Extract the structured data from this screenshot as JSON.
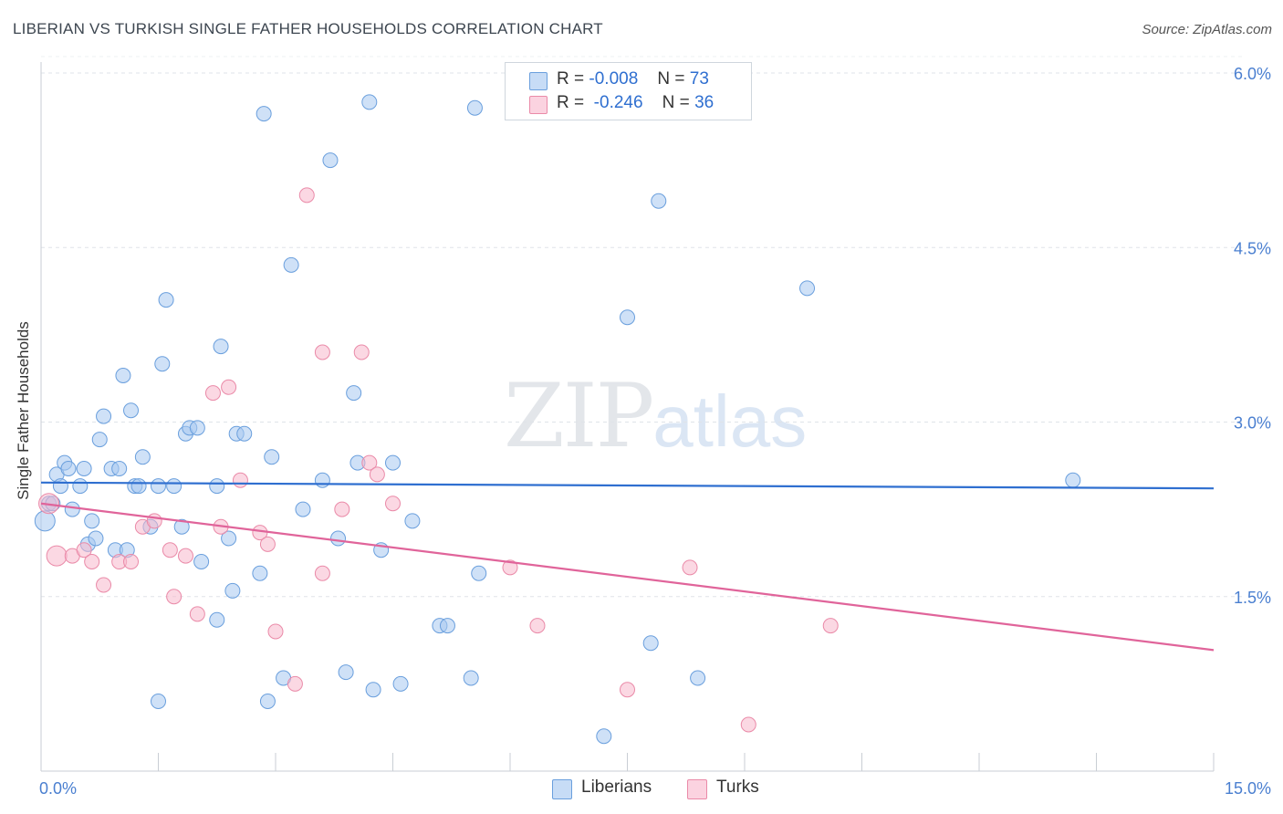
{
  "title": "LIBERIAN VS TURKISH SINGLE FATHER HOUSEHOLDS CORRELATION CHART",
  "source_label": "Source: ZipAtlas.com",
  "watermark": {
    "zip": "ZIP",
    "atlas": "atlas"
  },
  "legend": {
    "rows": [
      {
        "r_label": "R =",
        "r_value": "-0.008",
        "n_label": "N =",
        "n_value": "73",
        "color": "#a8c8f0"
      },
      {
        "r_label": "R =",
        "r_value": "-0.246",
        "n_label": "N =",
        "n_value": "36",
        "color": "#f7b8cc"
      }
    ]
  },
  "bottom_legend": [
    {
      "label": "Liberians",
      "color": "#a8c8f0"
    },
    {
      "label": "Turks",
      "color": "#f7b8cc"
    }
  ],
  "chart_data": {
    "type": "scatter",
    "title": "LIBERIAN VS TURKISH SINGLE FATHER HOUSEHOLDS CORRELATION CHART",
    "xlabel": "",
    "ylabel": "Single Father Households",
    "xlim": [
      0,
      15
    ],
    "ylim": [
      0,
      6.3
    ],
    "x_tick_labels": [
      "0.0%",
      "15.0%"
    ],
    "y_ticks": [
      1.5,
      3.0,
      4.5,
      6.0
    ],
    "y_tick_labels": [
      "1.5%",
      "3.0%",
      "4.5%",
      "6.0%"
    ],
    "grid": true,
    "series": [
      {
        "name": "Liberians",
        "color": "#a8c8f0",
        "stroke": "#6a9fdd",
        "points": [
          [
            0.05,
            2.15
          ],
          [
            0.1,
            2.3
          ],
          [
            0.2,
            2.55
          ],
          [
            0.25,
            2.45
          ],
          [
            0.3,
            2.65
          ],
          [
            0.35,
            2.6
          ],
          [
            0.4,
            2.25
          ],
          [
            0.5,
            2.45
          ],
          [
            0.55,
            2.6
          ],
          [
            0.6,
            1.95
          ],
          [
            0.65,
            2.15
          ],
          [
            0.7,
            2.0
          ],
          [
            0.75,
            2.85
          ],
          [
            0.8,
            3.05
          ],
          [
            0.9,
            2.6
          ],
          [
            0.95,
            1.9
          ],
          [
            1.0,
            2.6
          ],
          [
            1.05,
            3.4
          ],
          [
            1.1,
            1.9
          ],
          [
            1.15,
            3.1
          ],
          [
            1.2,
            2.45
          ],
          [
            1.25,
            2.45
          ],
          [
            1.3,
            2.7
          ],
          [
            1.4,
            2.1
          ],
          [
            1.5,
            2.45
          ],
          [
            1.5,
            0.6
          ],
          [
            1.55,
            3.5
          ],
          [
            1.6,
            4.05
          ],
          [
            1.7,
            2.45
          ],
          [
            1.8,
            2.1
          ],
          [
            1.85,
            2.9
          ],
          [
            1.9,
            2.95
          ],
          [
            2.0,
            2.95
          ],
          [
            2.05,
            1.8
          ],
          [
            2.25,
            2.45
          ],
          [
            2.25,
            1.3
          ],
          [
            2.3,
            3.65
          ],
          [
            2.4,
            2.0
          ],
          [
            2.45,
            1.55
          ],
          [
            2.5,
            2.9
          ],
          [
            2.6,
            2.9
          ],
          [
            2.8,
            1.7
          ],
          [
            2.85,
            5.65
          ],
          [
            2.9,
            0.6
          ],
          [
            2.95,
            2.7
          ],
          [
            3.1,
            0.8
          ],
          [
            3.2,
            4.35
          ],
          [
            3.35,
            2.25
          ],
          [
            3.6,
            2.5
          ],
          [
            3.7,
            5.25
          ],
          [
            3.8,
            2.0
          ],
          [
            3.9,
            0.85
          ],
          [
            4.0,
            3.25
          ],
          [
            4.05,
            2.65
          ],
          [
            4.2,
            5.75
          ],
          [
            4.25,
            0.7
          ],
          [
            4.35,
            1.9
          ],
          [
            4.5,
            2.65
          ],
          [
            4.6,
            0.75
          ],
          [
            4.75,
            2.15
          ],
          [
            5.1,
            1.25
          ],
          [
            5.2,
            1.25
          ],
          [
            5.5,
            0.8
          ],
          [
            5.55,
            5.7
          ],
          [
            5.6,
            1.7
          ],
          [
            7.2,
            0.3
          ],
          [
            7.5,
            3.9
          ],
          [
            7.8,
            1.1
          ],
          [
            7.9,
            4.9
          ],
          [
            8.4,
            0.8
          ],
          [
            9.8,
            4.15
          ],
          [
            13.2,
            2.5
          ],
          [
            0.15,
            2.3
          ]
        ]
      },
      {
        "name": "Turks",
        "color": "#f7b8cc",
        "stroke": "#ea8aa8",
        "points": [
          [
            0.1,
            2.3
          ],
          [
            0.2,
            1.85
          ],
          [
            0.4,
            1.85
          ],
          [
            0.55,
            1.9
          ],
          [
            0.65,
            1.8
          ],
          [
            0.8,
            1.6
          ],
          [
            1.0,
            1.8
          ],
          [
            1.15,
            1.8
          ],
          [
            1.3,
            2.1
          ],
          [
            1.45,
            2.15
          ],
          [
            1.65,
            1.9
          ],
          [
            1.7,
            1.5
          ],
          [
            1.85,
            1.85
          ],
          [
            2.0,
            1.35
          ],
          [
            2.2,
            3.25
          ],
          [
            2.3,
            2.1
          ],
          [
            2.4,
            3.3
          ],
          [
            2.55,
            2.5
          ],
          [
            2.8,
            2.05
          ],
          [
            2.9,
            1.95
          ],
          [
            3.0,
            1.2
          ],
          [
            3.25,
            0.75
          ],
          [
            3.4,
            4.95
          ],
          [
            3.6,
            1.7
          ],
          [
            3.6,
            3.6
          ],
          [
            3.85,
            2.25
          ],
          [
            4.1,
            3.6
          ],
          [
            4.2,
            2.65
          ],
          [
            4.3,
            2.55
          ],
          [
            4.5,
            2.3
          ],
          [
            6.0,
            1.75
          ],
          [
            6.35,
            1.25
          ],
          [
            7.5,
            0.7
          ],
          [
            8.3,
            1.75
          ],
          [
            9.05,
            0.4
          ],
          [
            10.1,
            1.25
          ]
        ]
      }
    ],
    "trend_lines": [
      {
        "series": "Liberians",
        "x": [
          0,
          15
        ],
        "y": [
          2.48,
          2.43
        ],
        "color": "#2f6fd0"
      },
      {
        "series": "Turks",
        "x": [
          0,
          15
        ],
        "y": [
          2.3,
          1.04
        ],
        "color": "#e0649a"
      }
    ]
  }
}
